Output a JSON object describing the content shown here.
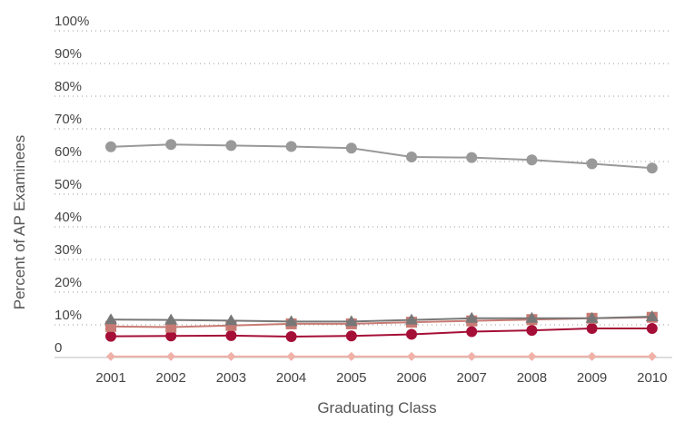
{
  "chart_data": {
    "type": "line",
    "title": "",
    "xlabel": "Graduating Class",
    "ylabel": "Percent of AP Examinees",
    "categories": [
      "2001",
      "2002",
      "2003",
      "2004",
      "2005",
      "2006",
      "2007",
      "2008",
      "2009",
      "2010"
    ],
    "y_tick_labels": [
      "0",
      "10%",
      "20%",
      "30%",
      "40%",
      "50%",
      "60%",
      "70%",
      "80%",
      "90%",
      "100%"
    ],
    "ylim": [
      0,
      100
    ],
    "grid": true,
    "legend": "none",
    "series": [
      {
        "color": "#999999",
        "marker": "circle",
        "values": [
          64.5,
          65.2,
          64.9,
          64.6,
          64.1,
          61.4,
          61.2,
          60.5,
          59.3,
          58.0
        ]
      },
      {
        "color": "#777777",
        "marker": "triangle",
        "values": [
          11.6,
          11.5,
          11.3,
          11.0,
          11.0,
          11.5,
          12.0,
          12.0,
          12.0,
          12.5
        ]
      },
      {
        "color": "#c87b74",
        "marker": "square",
        "values": [
          9.5,
          9.3,
          9.8,
          10.3,
          10.3,
          10.8,
          11.2,
          11.6,
          12.0,
          12.3
        ]
      },
      {
        "color": "#a50f37",
        "marker": "circle",
        "values": [
          6.5,
          6.6,
          6.7,
          6.4,
          6.6,
          7.1,
          7.9,
          8.3,
          8.9,
          8.9
        ]
      },
      {
        "color": "#f0b1a8",
        "marker": "diamond",
        "values": [
          0.3,
          0.3,
          0.3,
          0.3,
          0.3,
          0.3,
          0.3,
          0.3,
          0.3,
          0.3
        ]
      }
    ]
  }
}
